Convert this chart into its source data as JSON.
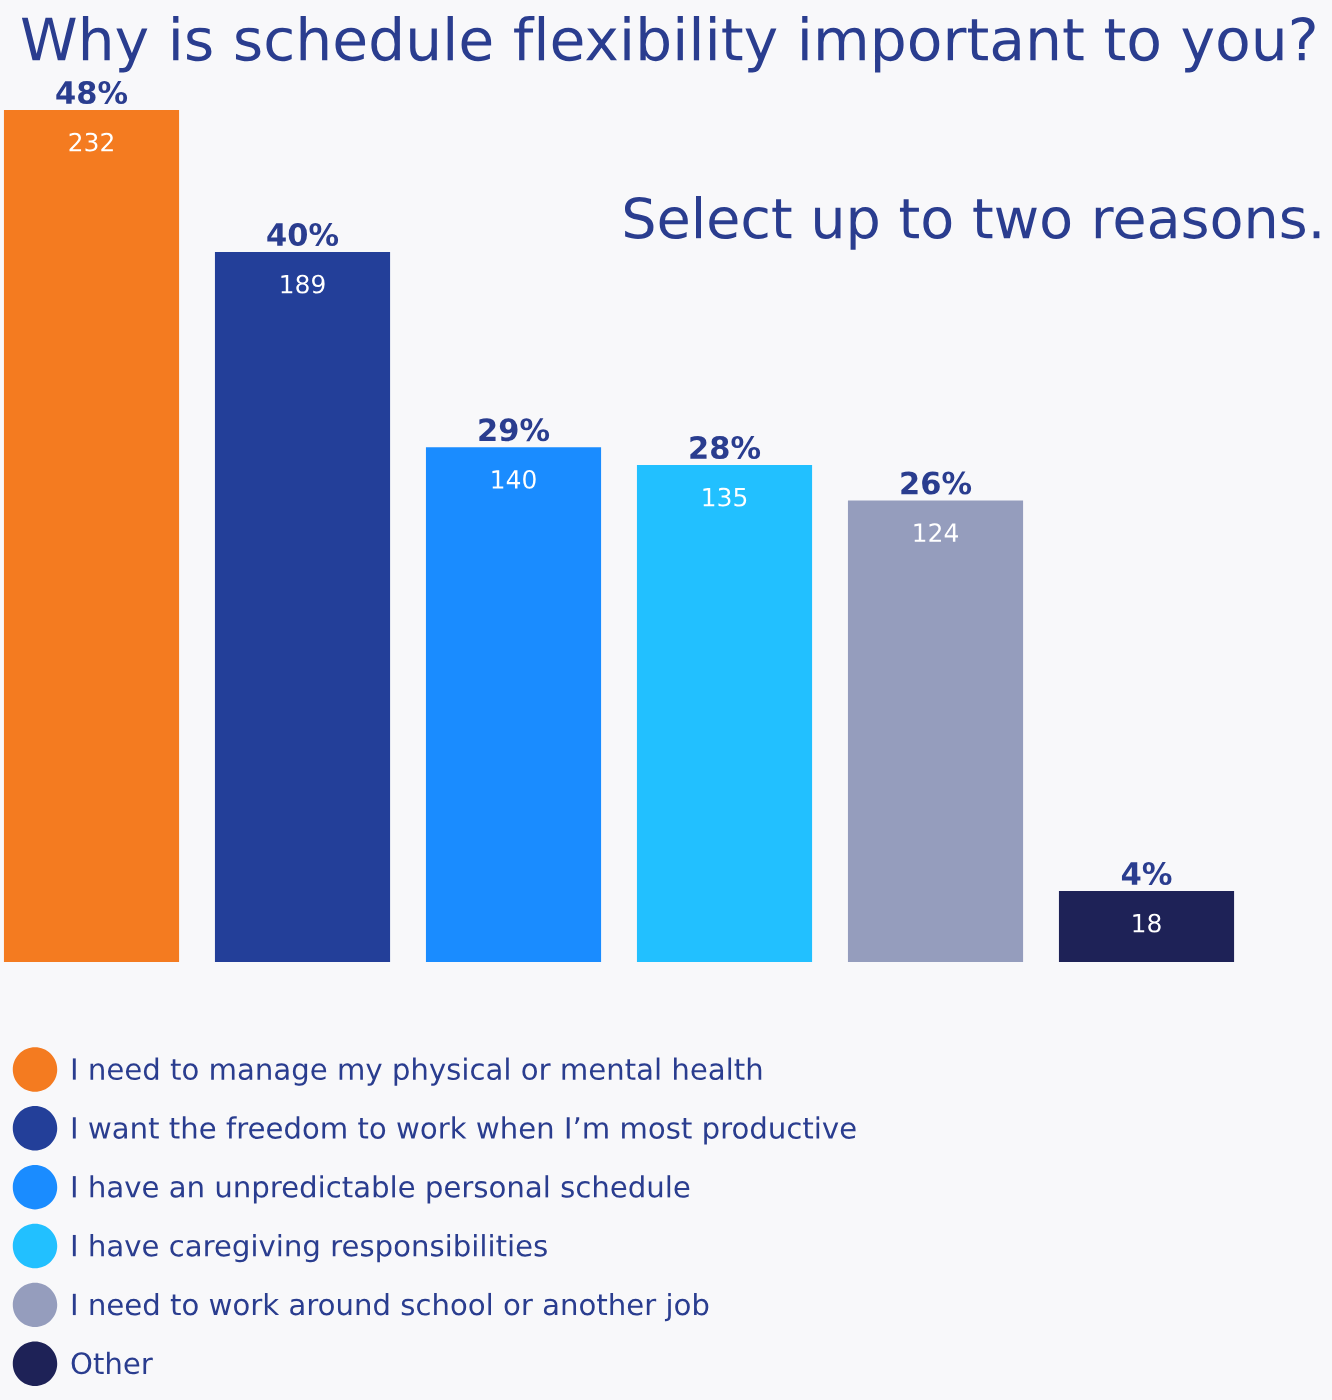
{
  "chart_data": {
    "type": "bar",
    "title": "Why is schedule flexibility important to you?",
    "subtitle": "Select up to two reasons.",
    "categories": [
      null,
      null,
      null,
      null,
      null,
      null
    ],
    "stacked": true,
    "legend": "bottom",
    "series": [
      {
        "name": "I need to manage my physical or mental health",
        "color": "#f47b20",
        "values": [
          48,
          null,
          null,
          null,
          null,
          null
        ],
        "value_labels": [
          "48%",
          null,
          null,
          null,
          null,
          null
        ]
      },
      {
        "name": "I want the freedom to work when I’m most productive",
        "color": "#233f99",
        "values": [
          null,
          40,
          null,
          null,
          null,
          null
        ],
        "value_labels": [
          null,
          "40%",
          null,
          null,
          null,
          null
        ]
      },
      {
        "name": "I have an unpredictable personal schedule",
        "color": "#1a8cff",
        "values": [
          null,
          null,
          29,
          null,
          null,
          null
        ],
        "value_labels": [
          null,
          null,
          "29%",
          null,
          null,
          null
        ]
      },
      {
        "name": "I have caregiving responsibilities",
        "color": "#22c0ff",
        "values": [
          null,
          null,
          null,
          28,
          null,
          null
        ],
        "value_labels": [
          null,
          null,
          null,
          "28%",
          null,
          null
        ]
      },
      {
        "name": "I need to work around school or another job",
        "color": "#959dbd",
        "values": [
          null,
          null,
          null,
          null,
          26,
          null
        ],
        "value_labels": [
          null,
          null,
          null,
          null,
          "26%",
          null
        ]
      },
      {
        "name": "Other",
        "color": "#1e2257",
        "values": [
          null,
          null,
          null,
          null,
          null,
          4
        ],
        "value_labels": [
          null,
          null,
          null,
          null,
          null,
          "4%"
        ]
      }
    ],
    "annotations": [
      "232",
      "189",
      "140",
      "135",
      "124",
      "18"
    ]
  }
}
